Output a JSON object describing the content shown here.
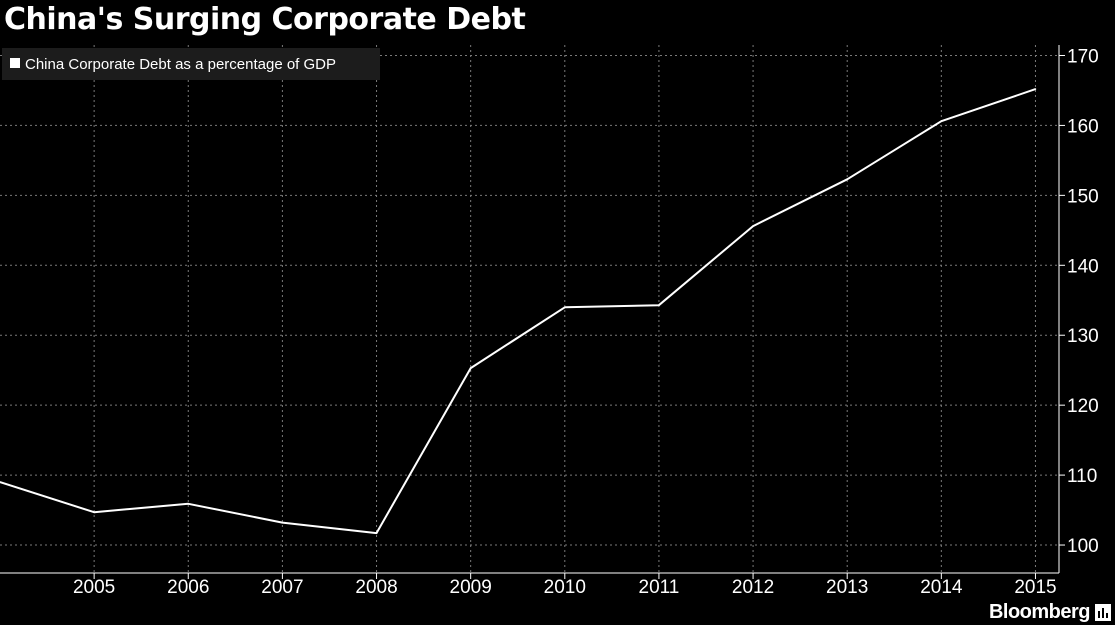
{
  "chart_data": {
    "type": "line",
    "title": "China's Surging Corporate Debt",
    "xlabel": "",
    "ylabel": "",
    "x": [
      2004,
      2005,
      2006,
      2007,
      2008,
      2009,
      2010,
      2011,
      2012,
      2013,
      2014,
      2015
    ],
    "x_tick_labels": [
      "2005",
      "2006",
      "2007",
      "2008",
      "2009",
      "2010",
      "2011",
      "2012",
      "2013",
      "2014",
      "2015"
    ],
    "y_tick_labels": [
      "100",
      "110",
      "120",
      "130",
      "140",
      "150",
      "160",
      "170"
    ],
    "ylim": [
      96.0,
      171.5
    ],
    "xlim": [
      2004.0,
      2015.25
    ],
    "grid": true,
    "legend_position": "top-left",
    "series": [
      {
        "name": "China Corporate Debt as a percentage of GDP",
        "color": "#ffffff",
        "values": [
          109.0,
          104.7,
          105.9,
          103.2,
          101.7,
          125.3,
          134.0,
          134.3,
          145.6,
          152.3,
          160.6,
          165.2
        ]
      }
    ]
  },
  "branding": {
    "name": "Bloomberg",
    "icon": "bloomberg-bars-icon"
  },
  "colors": {
    "background": "#000000",
    "line": "#ffffff",
    "grid": "#7a7a7a",
    "text": "#ffffff",
    "legend_bg": "#1c1c1c"
  }
}
